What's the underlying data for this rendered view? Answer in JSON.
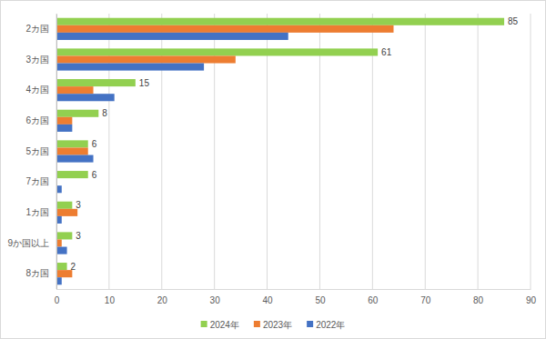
{
  "chart_data": {
    "type": "bar",
    "orientation": "horizontal",
    "categories": [
      "2カ国",
      "3カ国",
      "4カ国",
      "6カ国",
      "5カ国",
      "7カ国",
      "1カ国",
      "9か国以上",
      "8カ国"
    ],
    "series": [
      {
        "name": "2024年",
        "color": "#92d050",
        "values": [
          85,
          61,
          15,
          8,
          6,
          6,
          3,
          3,
          2
        ],
        "data_labels": true
      },
      {
        "name": "2023年",
        "color": "#ed7d31",
        "values": [
          64,
          34,
          7,
          3,
          6,
          0,
          4,
          1,
          3
        ]
      },
      {
        "name": "2022年",
        "color": "#4472c4",
        "values": [
          44,
          28,
          11,
          3,
          7,
          1,
          1,
          2,
          1
        ]
      }
    ],
    "xlim": [
      0,
      90
    ],
    "xticks": [
      0,
      10,
      20,
      30,
      40,
      50,
      60,
      70,
      80,
      90
    ],
    "grid": true,
    "legend": "bottom"
  }
}
